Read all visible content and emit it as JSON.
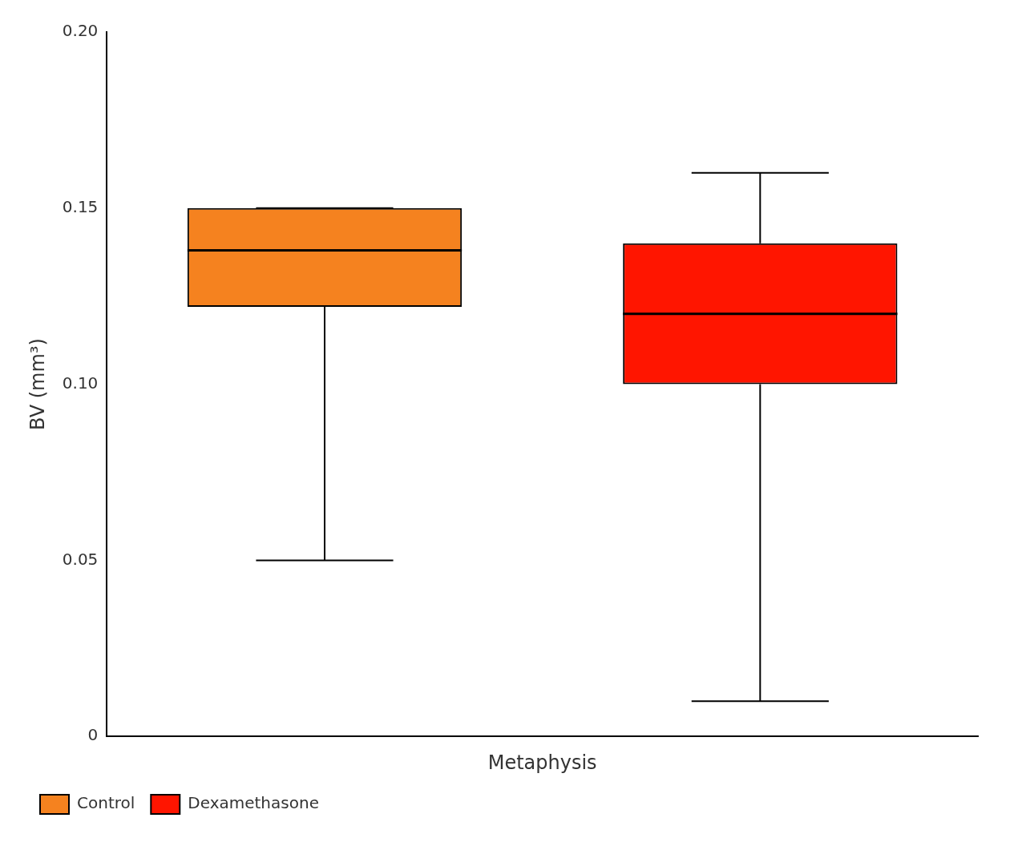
{
  "chart_data": {
    "type": "box",
    "xlabel": "Metaphysis",
    "ylabel": "BV (mm³)",
    "series": [
      {
        "name": "Control",
        "color": "#F5821F",
        "whisker_low": 0.05,
        "q1": 0.122,
        "median": 0.138,
        "q3": 0.15,
        "whisker_high": 0.15
      },
      {
        "name": "Dexamethasone",
        "color": "#FF1500",
        "whisker_low": 0.01,
        "q1": 0.1,
        "median": 0.12,
        "q3": 0.14,
        "whisker_high": 0.16
      }
    ],
    "ylim": [
      0,
      0.2
    ],
    "yticks": [
      0,
      0.05,
      {
        "value": 0.1,
        "label": "0.10"
      },
      0.15,
      {
        "value": 0.2,
        "label": "0.20"
      }
    ],
    "grid": false,
    "legend": "lower left",
    "tick_labels": "y"
  }
}
